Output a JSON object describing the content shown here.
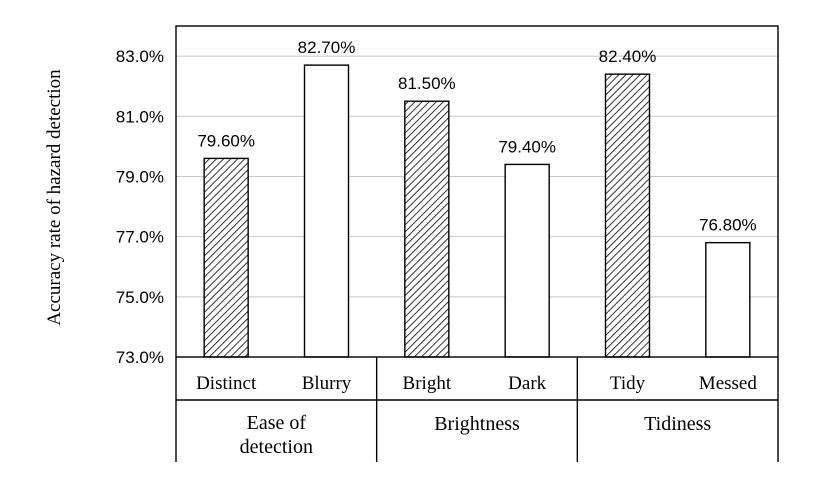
{
  "chart_data": {
    "type": "bar",
    "ylabel": "Accuracy rate of hazard detection",
    "ylim": [
      73.0,
      84.0
    ],
    "y_ticks": [
      "73.0%",
      "75.0%",
      "77.0%",
      "79.0%",
      "81.0%",
      "83.0%"
    ],
    "y_tick_values": [
      73,
      75,
      77,
      79,
      81,
      83
    ],
    "categories": [
      "Distinct",
      "Blurry",
      "Bright",
      "Dark",
      "Tidy",
      "Messed"
    ],
    "values": [
      79.6,
      82.7,
      81.5,
      79.4,
      82.4,
      76.8
    ],
    "data_labels": [
      "79.60%",
      "82.70%",
      "81.50%",
      "79.40%",
      "82.40%",
      "76.80%"
    ],
    "bar_fill": [
      "hatched",
      "plain",
      "hatched",
      "plain",
      "hatched",
      "plain"
    ],
    "groups": [
      {
        "label_lines": [
          "Ease of",
          "detection"
        ],
        "members": [
          "Distinct",
          "Blurry"
        ]
      },
      {
        "label_lines": [
          "Brightness"
        ],
        "members": [
          "Bright",
          "Dark"
        ]
      },
      {
        "label_lines": [
          "Tidiness"
        ],
        "members": [
          "Tidy",
          "Messed"
        ]
      }
    ],
    "grid": true,
    "colors": {
      "axis": "#000000",
      "grid": "#c8c8c8",
      "bar_edge": "#000000",
      "bar_plain": "#ffffff"
    }
  }
}
